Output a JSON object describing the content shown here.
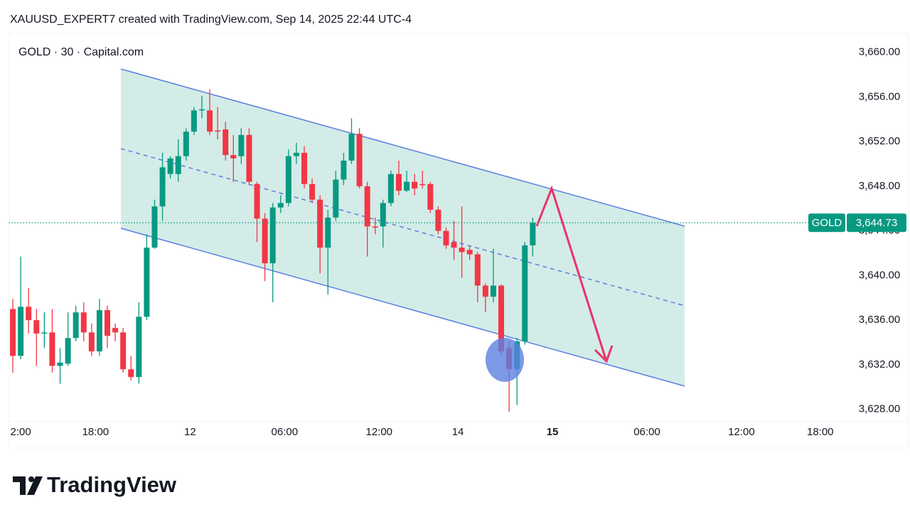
{
  "chart_data": {
    "type": "candlestick",
    "source": "XAUUSD_EXPERT7 created with TradingView.com, Sep 14, 2025 22:44 UTC-4",
    "title": "GOLD · 30 · Capital.com",
    "up_color": "#089981",
    "down_color": "#f23645",
    "candles": [
      [
        3637.0,
        3637.9,
        3631.3,
        3632.8
      ],
      [
        3632.8,
        3641.7,
        3632.5,
        3637.2
      ],
      [
        3637.2,
        3638.9,
        3634.8,
        3636.0
      ],
      [
        3636.0,
        3637.0,
        3631.9,
        3634.8
      ],
      [
        3634.8,
        3636.7,
        3633.5,
        3634.9
      ],
      [
        3634.9,
        3637.0,
        3631.3,
        3631.9
      ],
      [
        3631.9,
        3633.5,
        3630.3,
        3632.2
      ],
      [
        3632.1,
        3636.7,
        3631.9,
        3634.4
      ],
      [
        3634.4,
        3637.3,
        3634.1,
        3636.7
      ],
      [
        3636.7,
        3637.6,
        3634.1,
        3634.9
      ],
      [
        3634.9,
        3635.7,
        3632.8,
        3633.2
      ],
      [
        3633.2,
        3637.9,
        3632.8,
        3636.9
      ],
      [
        3636.9,
        3637.3,
        3633.5,
        3634.6
      ],
      [
        3635.3,
        3635.7,
        3634.1,
        3634.9
      ],
      [
        3634.9,
        3635.3,
        3631.3,
        3631.6
      ],
      [
        3631.6,
        3632.8,
        3630.6,
        3630.9
      ],
      [
        3630.9,
        3637.6,
        3630.3,
        3636.3
      ],
      [
        3636.3,
        3643.7,
        3636.0,
        3642.5
      ],
      [
        3642.5,
        3646.8,
        3642.4,
        3646.2
      ],
      [
        3646.2,
        3651.0,
        3644.9,
        3649.7
      ],
      [
        3649.1,
        3650.7,
        3648.7,
        3650.5
      ],
      [
        3649.1,
        3652.2,
        3648.4,
        3650.7
      ],
      [
        3650.7,
        3653.2,
        3650.3,
        3652.9
      ],
      [
        3652.9,
        3655.1,
        3652.6,
        3654.8
      ],
      [
        3654.8,
        3656.1,
        3654.1,
        3654.9
      ],
      [
        3654.8,
        3656.7,
        3652.6,
        3652.9
      ],
      [
        3653.0,
        3655.1,
        3652.2,
        3652.9
      ],
      [
        3653.1,
        3653.8,
        3650.3,
        3650.8
      ],
      [
        3650.8,
        3652.6,
        3648.4,
        3650.5
      ],
      [
        3650.7,
        3653.2,
        3650.0,
        3652.6
      ],
      [
        3652.6,
        3653.2,
        3648.1,
        3648.4
      ],
      [
        3648.2,
        3648.4,
        3643.0,
        3645.1
      ],
      [
        3645.1,
        3645.6,
        3639.5,
        3641.1
      ],
      [
        3641.1,
        3646.5,
        3637.6,
        3646.1
      ],
      [
        3646.1,
        3647.2,
        3645.6,
        3646.5
      ],
      [
        3646.5,
        3651.3,
        3646.2,
        3650.7
      ],
      [
        3650.7,
        3651.9,
        3650.0,
        3651.0
      ],
      [
        3651.0,
        3651.6,
        3647.8,
        3648.2
      ],
      [
        3648.2,
        3648.7,
        3646.5,
        3646.8
      ],
      [
        3646.8,
        3647.2,
        3640.2,
        3642.5
      ],
      [
        3642.5,
        3645.9,
        3638.3,
        3645.2
      ],
      [
        3645.2,
        3649.4,
        3644.9,
        3648.6
      ],
      [
        3648.6,
        3651.0,
        3648.1,
        3650.3
      ],
      [
        3650.3,
        3654.1,
        3650.0,
        3652.7
      ],
      [
        3652.7,
        3653.2,
        3647.8,
        3648.0
      ],
      [
        3648.0,
        3648.4,
        3641.7,
        3644.4
      ],
      [
        3644.4,
        3645.2,
        3643.7,
        3644.3
      ],
      [
        3644.4,
        3646.8,
        3642.5,
        3646.5
      ],
      [
        3646.5,
        3649.4,
        3646.2,
        3649.1
      ],
      [
        3649.1,
        3650.3,
        3647.2,
        3647.6
      ],
      [
        3647.6,
        3649.4,
        3647.5,
        3648.4
      ],
      [
        3648.4,
        3649.1,
        3647.2,
        3647.8
      ],
      [
        3648.2,
        3649.4,
        3647.8,
        3648.1
      ],
      [
        3648.2,
        3648.4,
        3645.6,
        3645.9
      ],
      [
        3645.9,
        3646.2,
        3643.7,
        3644.0
      ],
      [
        3644.0,
        3644.3,
        3642.4,
        3642.7
      ],
      [
        3643.0,
        3644.9,
        3641.4,
        3642.5
      ],
      [
        3642.5,
        3646.2,
        3639.8,
        3642.1
      ],
      [
        3642.3,
        3642.7,
        3641.4,
        3641.9
      ],
      [
        3641.9,
        3642.1,
        3637.6,
        3639.1
      ],
      [
        3639.1,
        3639.3,
        3636.7,
        3638.1
      ],
      [
        3638.1,
        3642.4,
        3637.6,
        3639.1
      ],
      [
        3639.1,
        3639.2,
        3632.8,
        3633.2
      ],
      [
        3633.5,
        3634.1,
        3627.8,
        3631.6
      ],
      [
        3631.6,
        3634.4,
        3628.4,
        3634.1
      ],
      [
        3634.1,
        3643.0,
        3633.8,
        3642.7
      ],
      [
        3642.7,
        3645.2,
        3641.7,
        3644.73
      ]
    ],
    "xlim": [
      -0.5,
      105.5
    ],
    "xticks": [
      {
        "value": 1,
        "label": "2:00"
      },
      {
        "value": 10.5,
        "label": "18:00"
      },
      {
        "value": 22.5,
        "label": "12"
      },
      {
        "value": 34.5,
        "label": "06:00"
      },
      {
        "value": 46.5,
        "label": "12:00"
      },
      {
        "value": 56.5,
        "label": "14"
      },
      {
        "value": 68.5,
        "label": "15"
      },
      {
        "value": 80.5,
        "label": "06:00"
      },
      {
        "value": 92.5,
        "label": "12:00"
      },
      {
        "value": 102.5,
        "label": "18:00"
      }
    ],
    "ylim": [
      3626.9,
      3661.7
    ],
    "yticks": [
      {
        "value": 3628,
        "label": "3,628.00"
      },
      {
        "value": 3632,
        "label": "3,632.00"
      },
      {
        "value": 3636,
        "label": "3,636.00"
      },
      {
        "value": 3640,
        "label": "3,640.00"
      },
      {
        "value": 3644,
        "label": "3,644.00"
      },
      {
        "value": 3648,
        "label": "3,648.00"
      },
      {
        "value": 3652,
        "label": "3,652.00"
      },
      {
        "value": 3656,
        "label": "3,656.00"
      },
      {
        "value": 3660,
        "label": "3,660.00"
      }
    ],
    "last_price": {
      "symbol": "GOLD",
      "value": 3644.73,
      "label": "3,644.73"
    }
  },
  "brand": "TradingView"
}
